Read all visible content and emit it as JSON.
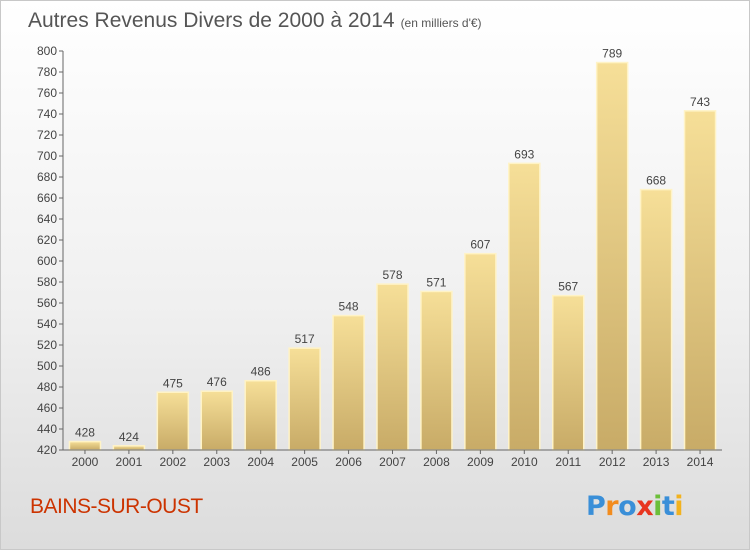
{
  "header": {
    "title": "Autres Revenus Divers de 2000 à 2014",
    "subtitle": "(en milliers d'€)"
  },
  "footer": {
    "place": "BAINS-SUR-OUST",
    "brand": "Proxiti",
    "brand_letters": [
      {
        "char": "P",
        "color": "#3a8fd8"
      },
      {
        "char": "r",
        "color": "#f28c1e"
      },
      {
        "char": "o",
        "color": "#3a8fd8"
      },
      {
        "char": "x",
        "color": "#e8351f"
      },
      {
        "char": "i",
        "color": "#6cbf3a"
      },
      {
        "char": "t",
        "color": "#3a8fd8"
      },
      {
        "char": "i",
        "color": "#f2b21e"
      }
    ]
  },
  "chart_data": {
    "type": "bar",
    "title": "Autres Revenus Divers de 2000 à 2014",
    "subtitle": "(en milliers d'€)",
    "categories": [
      "2000",
      "2001",
      "2002",
      "2003",
      "2004",
      "2005",
      "2006",
      "2007",
      "2008",
      "2009",
      "2010",
      "2011",
      "2012",
      "2013",
      "2014"
    ],
    "values": [
      428,
      424,
      475,
      476,
      486,
      517,
      548,
      578,
      571,
      607,
      693,
      567,
      789,
      668,
      743
    ],
    "ylim": [
      420,
      800
    ],
    "ytick_step": 20,
    "grid": false,
    "data_labels": true,
    "colors": {
      "bar_top": "#f6df98",
      "bar_bottom": "#c8ab67",
      "bar_edge": "#fff3c6",
      "axis": "#666666",
      "text": "#444444"
    }
  }
}
